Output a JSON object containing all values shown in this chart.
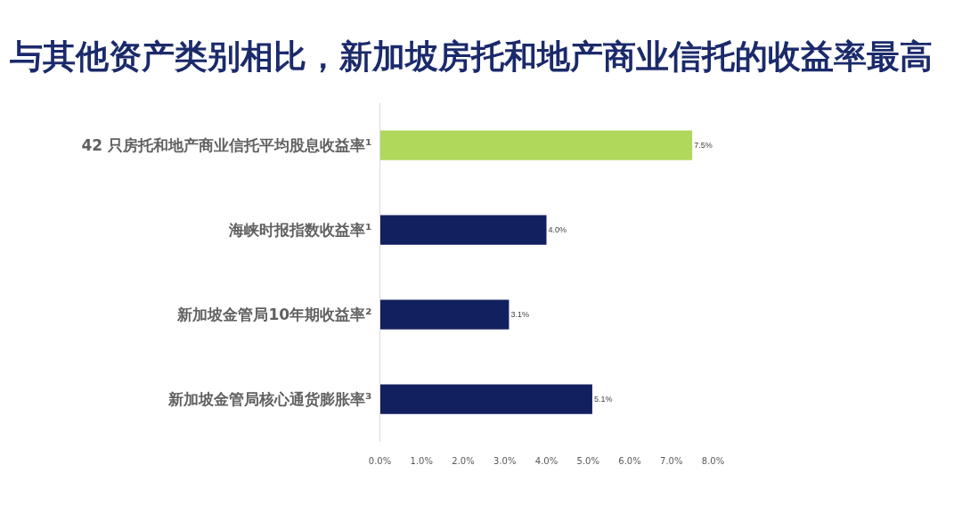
{
  "chart_data": {
    "type": "bar",
    "orientation": "horizontal",
    "title": "与其他资产类别相比，新加坡房托和地产商业信托的收益率最高",
    "categories": [
      "42 只房托和地产商业信托平均股息收益率¹",
      "海峡时报指数收益率¹",
      "新加坡金管局10年期收益率²",
      "新加坡金管局核心通货膨胀率³"
    ],
    "values": [
      7.5,
      4.0,
      3.1,
      5.1
    ],
    "colors": [
      "#b0d95b",
      "#13205f",
      "#13205f",
      "#13205f"
    ],
    "value_labels": [
      "7.5%",
      "4.0%",
      "3.1%",
      "5.1%"
    ],
    "xlim": [
      0,
      8
    ],
    "xticks": [
      {
        "value": 0,
        "label": "0.0%"
      },
      {
        "value": 1,
        "label": "1.0%"
      },
      {
        "value": 2,
        "label": "2.0%"
      },
      {
        "value": 3,
        "label": "3.0%"
      },
      {
        "value": 4,
        "label": "4.0%"
      },
      {
        "value": 5,
        "label": "5.0%"
      },
      {
        "value": 6,
        "label": "6.0%"
      },
      {
        "value": 7,
        "label": "7.0%"
      },
      {
        "value": 8,
        "label": "8.0%"
      }
    ],
    "grid": false
  }
}
